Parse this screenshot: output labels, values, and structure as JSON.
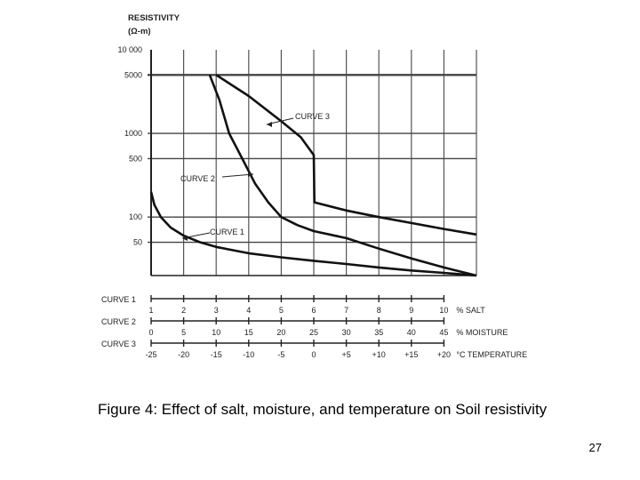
{
  "chart_data": {
    "type": "line",
    "title": "",
    "ylabel": "RESISTIVITY",
    "ylabel_unit": "(Ω-m)",
    "yscale": "log",
    "ylim": [
      20,
      10000
    ],
    "y_tick_labels": [
      {
        "value": 10000,
        "label": "10 000"
      },
      {
        "value": 5000,
        "label": "5000"
      },
      {
        "value": 1000,
        "label": "1000"
      },
      {
        "value": 500,
        "label": "500"
      },
      {
        "value": 100,
        "label": "100"
      },
      {
        "value": 50,
        "label": "50"
      }
    ],
    "xlim": [
      0,
      10
    ],
    "x_axes": [
      {
        "name": "CURVE 1",
        "unit_label": "% SALT",
        "ticks": [
          "1",
          "2",
          "3",
          "4",
          "5",
          "6",
          "7",
          "8",
          "9",
          "10"
        ],
        "start_offset": 1
      },
      {
        "name": "CURVE 2",
        "unit_label": "% MOISTURE",
        "ticks": [
          "0",
          "5",
          "10",
          "15",
          "20",
          "25",
          "30",
          "35",
          "40",
          "45"
        ],
        "start_offset": 0
      },
      {
        "name": "CURVE 3",
        "unit_label": "°C TEMPERATURE",
        "ticks": [
          "-25",
          "-20",
          "-15",
          "-10",
          "-5",
          "0",
          "+5",
          "+10",
          "+15",
          "+20"
        ],
        "start_offset": 0
      }
    ],
    "series": [
      {
        "name": "CURVE 1",
        "label": "CURVE 1",
        "points": [
          [
            0,
            200
          ],
          [
            0.1,
            140
          ],
          [
            0.3,
            100
          ],
          [
            0.6,
            75
          ],
          [
            1,
            60
          ],
          [
            1.5,
            50
          ],
          [
            2,
            44
          ],
          [
            3,
            37
          ],
          [
            4,
            33
          ],
          [
            5,
            30
          ],
          [
            6,
            27.5
          ],
          [
            7,
            25
          ],
          [
            8,
            23
          ],
          [
            9,
            21.5
          ],
          [
            10,
            20
          ]
        ]
      },
      {
        "name": "CURVE 2",
        "label": "CURVE 2",
        "points": [
          [
            1.8,
            5000
          ],
          [
            2.1,
            2500
          ],
          [
            2.4,
            1000
          ],
          [
            2.8,
            500
          ],
          [
            3.2,
            250
          ],
          [
            3.6,
            150
          ],
          [
            4,
            100
          ],
          [
            4.5,
            80
          ],
          [
            5,
            68
          ],
          [
            6,
            56
          ],
          [
            7,
            42
          ],
          [
            8,
            32
          ],
          [
            9,
            25
          ],
          [
            10,
            20
          ]
        ]
      },
      {
        "name": "CURVE 3",
        "label": "CURVE 3",
        "points": [
          [
            2,
            5000
          ],
          [
            3,
            2800
          ],
          [
            4,
            1400
          ],
          [
            4.6,
            900
          ],
          [
            5,
            550
          ],
          [
            5.02,
            150
          ],
          [
            6,
            120
          ],
          [
            7,
            100
          ],
          [
            8,
            85
          ],
          [
            9,
            72
          ],
          [
            10,
            62
          ]
        ]
      }
    ],
    "grid": true
  },
  "caption": "Figure 4: Effect of salt, moisture, and temperature on Soil resistivity",
  "page_number": "27"
}
